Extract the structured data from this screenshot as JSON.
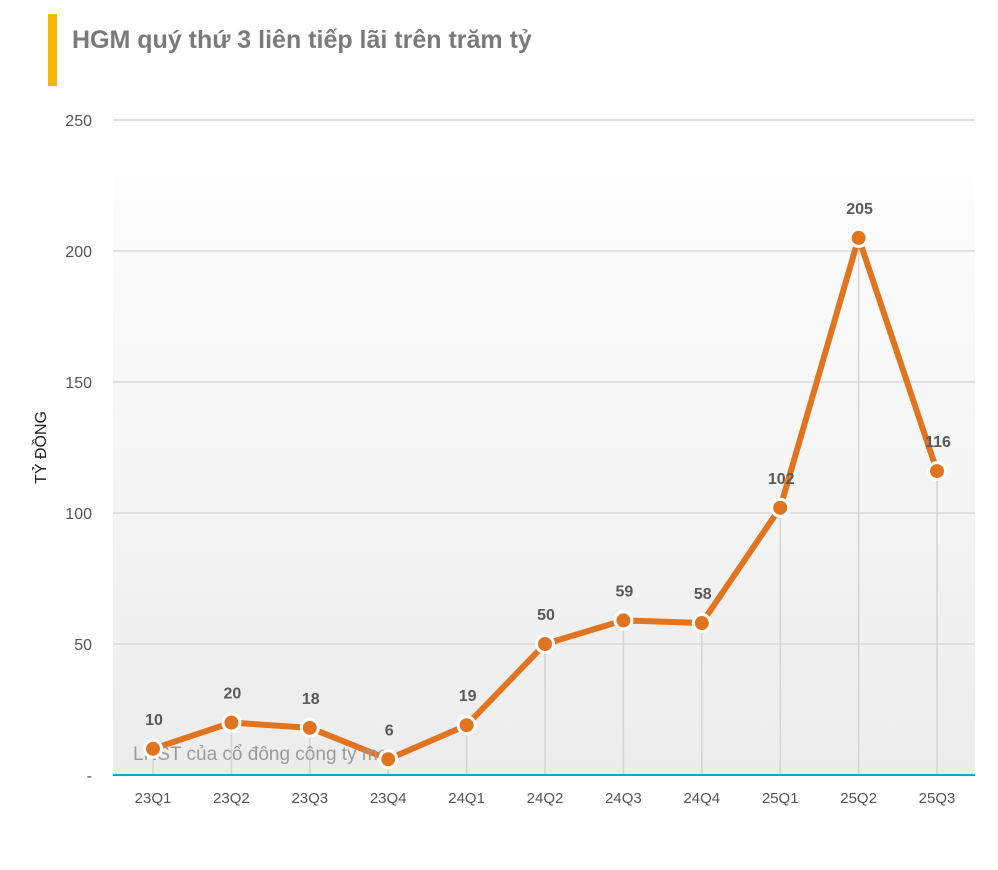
{
  "title": "HGM quý thứ 3 liên tiếp lãi trên trăm tỷ",
  "colors": {
    "accent_bar": "#f5b800",
    "line": "#e0741f",
    "baseline": "#1ba3b5",
    "grid": "#d9d9d9"
  },
  "chart_data": {
    "type": "line",
    "title": "HGM quý thứ 3 liên tiếp lãi trên trăm tỷ",
    "xlabel": "",
    "ylabel": "TỶ ĐỒNG",
    "categories": [
      "23Q1",
      "23Q2",
      "23Q3",
      "23Q4",
      "24Q1",
      "24Q2",
      "24Q3",
      "24Q4",
      "25Q1",
      "25Q2",
      "25Q3"
    ],
    "series": [
      {
        "name": "LNST của cổ đông công ty mẹ",
        "values": [
          10,
          20,
          18,
          6,
          19,
          50,
          59,
          58,
          102,
          205,
          116
        ]
      }
    ],
    "ylim": [
      0,
      250
    ],
    "yticks": [
      0,
      50,
      100,
      150,
      200,
      250
    ],
    "ytick_labels": [
      "-",
      "50",
      "100",
      "150",
      "200",
      "250"
    ],
    "grid": true,
    "data_labels": true,
    "legend": "inside-bottom-left"
  }
}
